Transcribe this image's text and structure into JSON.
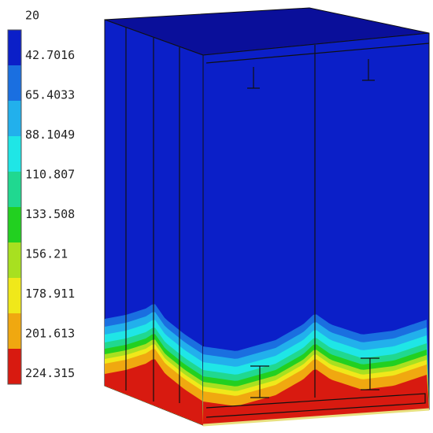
{
  "legend": {
    "labels": [
      "20",
      "42.7016",
      "65.4033",
      "88.1049",
      "110.807",
      "133.508",
      "156.21",
      "178.911",
      "201.613",
      "224.315"
    ],
    "colors": [
      "#0b1fc8",
      "#1a6fe0",
      "#22b0ec",
      "#1fe6e6",
      "#20d890",
      "#22d020",
      "#a8e020",
      "#f0e81a",
      "#f0a810",
      "#d81a10"
    ]
  }
}
